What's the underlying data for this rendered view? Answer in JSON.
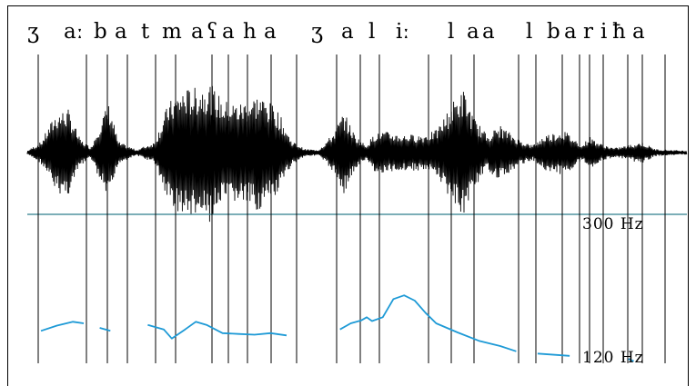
{
  "transcription": {
    "segments": [
      "ʒ",
      "aː",
      "b",
      "a",
      "t",
      "m",
      "a",
      "ʕ",
      "a",
      "h",
      "a",
      "ʒ",
      "a",
      "l",
      "iː",
      "l",
      "a",
      "a",
      "l",
      "b",
      "a",
      "r",
      "i",
      "ħ",
      "a"
    ]
  },
  "pitch_scale": {
    "top_label": "300 Hz",
    "bottom_label": "120 Hz"
  },
  "colors": {
    "waveform": "#000000",
    "pitch_track": "#1e9ad6",
    "divider": "#2e7d8c",
    "boundaries": "#000000"
  },
  "pitch_track": {
    "unit": "Hz",
    "segments": [
      [
        [
          0.0,
          158
        ],
        [
          0.03,
          165
        ],
        [
          0.06,
          170
        ],
        [
          0.08,
          168
        ]
      ],
      [
        [
          0.11,
          162
        ],
        [
          0.13,
          158
        ]
      ],
      [
        [
          0.2,
          166
        ],
        [
          0.23,
          160
        ],
        [
          0.245,
          148
        ],
        [
          0.27,
          160
        ],
        [
          0.29,
          170
        ],
        [
          0.31,
          166
        ],
        [
          0.34,
          155
        ],
        [
          0.37,
          154
        ],
        [
          0.4,
          153
        ],
        [
          0.43,
          155
        ],
        [
          0.46,
          152
        ]
      ],
      [
        [
          0.56,
          160
        ],
        [
          0.58,
          168
        ],
        [
          0.6,
          172
        ],
        [
          0.61,
          176
        ],
        [
          0.62,
          171
        ],
        [
          0.64,
          176
        ],
        [
          0.66,
          200
        ],
        [
          0.68,
          205
        ],
        [
          0.7,
          198
        ],
        [
          0.72,
          182
        ],
        [
          0.74,
          168
        ],
        [
          0.78,
          156
        ],
        [
          0.82,
          145
        ],
        [
          0.86,
          138
        ],
        [
          0.89,
          131
        ]
      ],
      [
        [
          0.93,
          128
        ],
        [
          0.99,
          125
        ]
      ],
      [
        [
          1.1,
          121
        ],
        [
          1.11,
          118
        ]
      ]
    ]
  }
}
